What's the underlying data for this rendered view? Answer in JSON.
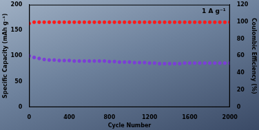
{
  "chart_data": {
    "type": "scatter",
    "xlabel": "Cycle Number",
    "ylabel": "Specific Capacity (mAh g⁻¹)",
    "y2label": "Coulombic Efficiency (%)",
    "annotation": "1 A g⁻¹",
    "x": [
      0,
      50,
      100,
      150,
      200,
      250,
      300,
      350,
      400,
      450,
      500,
      550,
      600,
      650,
      700,
      750,
      800,
      850,
      900,
      950,
      1000,
      1050,
      1100,
      1150,
      1200,
      1250,
      1300,
      1350,
      1400,
      1450,
      1500,
      1550,
      1600,
      1650,
      1700,
      1750,
      1800,
      1850,
      1900,
      1950,
      2000
    ],
    "series": [
      {
        "color": "#7b3fd6",
        "marker": "circle",
        "axis": "y",
        "values": [
          100,
          97,
          95,
          93,
          92,
          92,
          91,
          91,
          91,
          90,
          90,
          90,
          90,
          90,
          90,
          90,
          89,
          89,
          88,
          88,
          88,
          87,
          87,
          87,
          86,
          86,
          85,
          85,
          85,
          85,
          85,
          86,
          86,
          86,
          86,
          86,
          86,
          86,
          86,
          86,
          86
        ]
      },
      {
        "color": "#ff1a1a",
        "marker": "circle",
        "axis": "y2",
        "values": [
          98,
          99.5,
          99.5,
          99.5,
          99.5,
          99.5,
          99.5,
          99.5,
          99.5,
          99.5,
          99.5,
          99.5,
          99.5,
          99.5,
          99.5,
          99.5,
          99.5,
          99.5,
          99.5,
          99.5,
          99.5,
          99.5,
          99.5,
          99.5,
          99.5,
          99.5,
          99.5,
          99.5,
          99.5,
          99.5,
          99.5,
          99.5,
          99.5,
          99.5,
          99.5,
          99.5,
          99.5,
          99.5,
          99.5,
          99.5,
          99.5
        ]
      }
    ],
    "xlim": [
      0,
      2000
    ],
    "xticks": [
      0,
      400,
      800,
      1200,
      1600,
      2000
    ],
    "ylim": [
      0,
      200
    ],
    "yticks": [
      0,
      50,
      100,
      150,
      200
    ],
    "y2lim": [
      0,
      120
    ],
    "y2ticks": [
      0,
      20,
      40,
      60,
      80,
      100,
      120
    ],
    "grid": false
  }
}
